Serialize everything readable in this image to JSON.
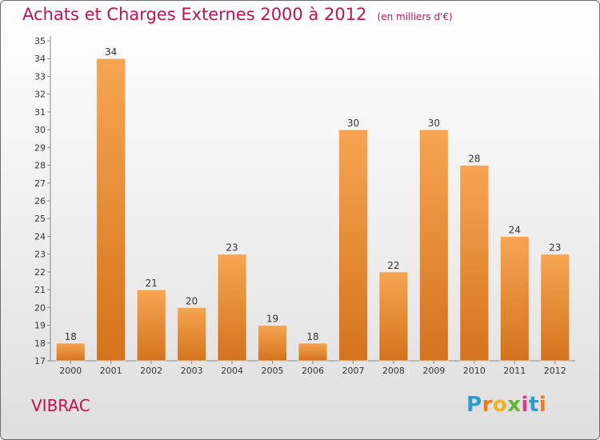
{
  "title": "Achats et Charges Externes 2000 à 2012",
  "unit_note": "(en milliers d'€)",
  "place_name": "VIBRAC",
  "logo": {
    "letters": [
      "P",
      "r",
      "o",
      "x",
      "i",
      "t",
      "i"
    ],
    "colors": [
      "#2f9ad6",
      "#f07a1a",
      "#f2b21c",
      "#63b52e",
      "#e23a8a",
      "#2f9ad6",
      "#f07a1a"
    ]
  },
  "colors": {
    "title": "#c4124f",
    "bar_top": "#f7a552",
    "bar_bottom": "#d4731c",
    "axis": "#888888"
  },
  "chart_data": {
    "type": "bar",
    "title": "Achats et Charges Externes 2000 à 2012",
    "subtitle": "(en milliers d'€)",
    "xlabel": "",
    "ylabel": "",
    "categories": [
      "2000",
      "2001",
      "2002",
      "2003",
      "2004",
      "2005",
      "2006",
      "2007",
      "2008",
      "2009",
      "2010",
      "2011",
      "2012"
    ],
    "values": [
      18,
      34,
      21,
      20,
      23,
      19,
      18,
      30,
      22,
      30,
      28,
      24,
      23
    ],
    "ylim": [
      17,
      35
    ],
    "yticks": [
      17,
      18,
      19,
      20,
      21,
      22,
      23,
      24,
      25,
      26,
      27,
      28,
      29,
      30,
      31,
      32,
      33,
      34,
      35
    ],
    "grid": false,
    "data_labels": true
  }
}
